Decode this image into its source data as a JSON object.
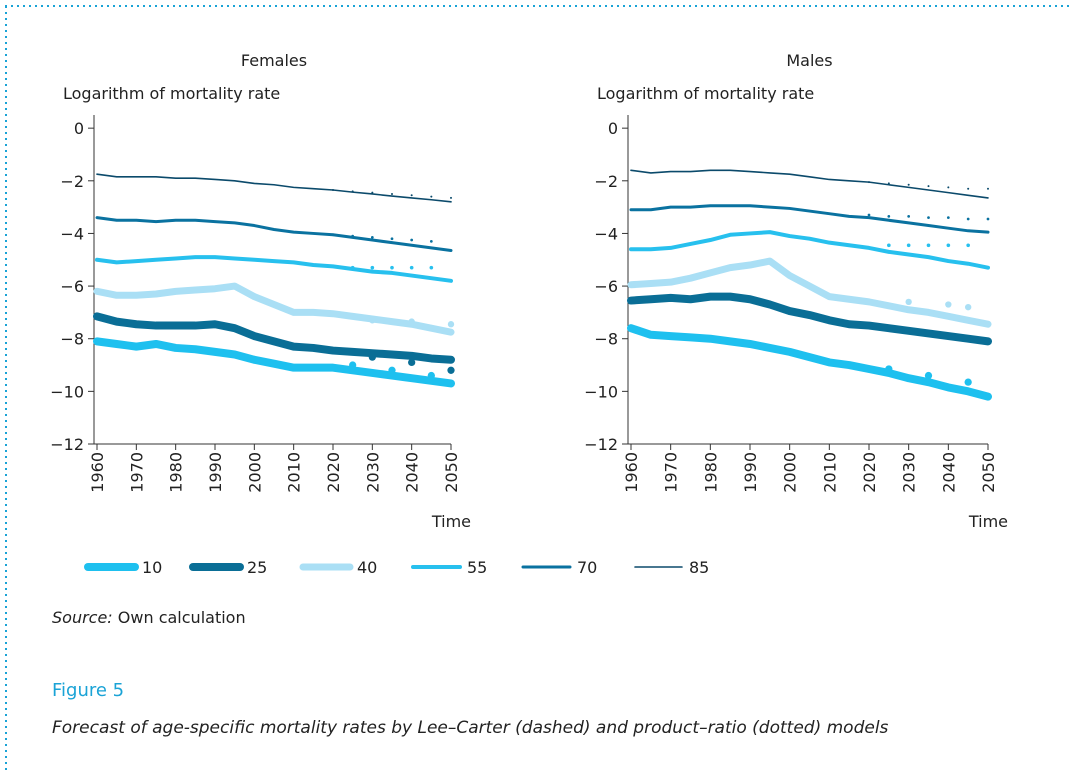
{
  "chart_data": [
    {
      "type": "line",
      "title": "Females",
      "ylabel": "Logarithm of mortality rate",
      "xlabel": "Time",
      "x": [
        1960,
        1965,
        1970,
        1975,
        1980,
        1985,
        1990,
        1995,
        2000,
        2005,
        2010,
        2015,
        2020,
        2025,
        2030,
        2035,
        2040,
        2045,
        2050
      ],
      "xlim": [
        1960,
        2050
      ],
      "xticks": [
        1960,
        1970,
        1980,
        1990,
        2000,
        2010,
        2020,
        2030,
        2040,
        2050
      ],
      "ylim": [
        -12,
        0.5
      ],
      "yticks": [
        0,
        {
          "value": -2,
          "label": "−2"
        },
        {
          "value": -4,
          "label": "−4"
        },
        {
          "value": -6,
          "label": "−6"
        },
        {
          "value": -8,
          "label": "−8"
        },
        {
          "value": -10,
          "label": "−10"
        },
        {
          "value": -12,
          "label": "−12"
        }
      ],
      "series": [
        {
          "name": "10",
          "color": "#1ec0ef",
          "line_width": 8,
          "values": [
            -8.1,
            -8.2,
            -8.3,
            -8.2,
            -8.35,
            -8.4,
            -8.5,
            -8.6,
            -8.8,
            -8.95,
            -9.1,
            -9.1,
            -9.1,
            -9.2,
            -9.3,
            -9.4,
            -9.5,
            -9.6,
            -9.7
          ],
          "dotted_values": [
            null,
            null,
            null,
            null,
            null,
            null,
            null,
            null,
            null,
            null,
            null,
            null,
            null,
            -9.0,
            null,
            -9.2,
            null,
            -9.4,
            null
          ]
        },
        {
          "name": "25",
          "color": "#0a6e96",
          "line_width": 8,
          "values": [
            -7.15,
            -7.35,
            -7.45,
            -7.5,
            -7.5,
            -7.5,
            -7.45,
            -7.6,
            -7.9,
            -8.1,
            -8.3,
            -8.35,
            -8.45,
            -8.5,
            -8.55,
            -8.6,
            -8.65,
            -8.75,
            -8.8
          ],
          "dotted_values": [
            null,
            null,
            null,
            null,
            null,
            null,
            null,
            null,
            null,
            null,
            null,
            null,
            null,
            null,
            -8.7,
            null,
            -8.9,
            null,
            -9.2
          ]
        },
        {
          "name": "40",
          "color": "#aadff5",
          "line_width": 7,
          "values": [
            -6.2,
            -6.35,
            -6.35,
            -6.3,
            -6.2,
            -6.15,
            -6.1,
            -6.0,
            -6.4,
            -6.7,
            -7.0,
            -7.0,
            -7.05,
            -7.15,
            -7.25,
            -7.35,
            -7.45,
            -7.6,
            -7.75
          ],
          "dotted_values": [
            null,
            null,
            null,
            null,
            null,
            null,
            null,
            null,
            null,
            null,
            null,
            null,
            null,
            null,
            -7.3,
            null,
            -7.35,
            null,
            -7.45
          ]
        },
        {
          "name": "55",
          "color": "#27c0ee",
          "line_width": 4,
          "values": [
            -5.0,
            -5.1,
            -5.05,
            -5.0,
            -4.95,
            -4.9,
            -4.9,
            -4.95,
            -5.0,
            -5.05,
            -5.1,
            -5.2,
            -5.25,
            -5.35,
            -5.45,
            -5.5,
            -5.6,
            -5.7,
            -5.8
          ],
          "dotted_values": [
            null,
            null,
            null,
            null,
            null,
            null,
            null,
            null,
            null,
            null,
            null,
            null,
            null,
            -5.3,
            -5.3,
            -5.3,
            -5.3,
            -5.3,
            null
          ]
        },
        {
          "name": "70",
          "color": "#0a72a0",
          "line_width": 3,
          "values": [
            -3.4,
            -3.5,
            -3.5,
            -3.55,
            -3.5,
            -3.5,
            -3.55,
            -3.6,
            -3.7,
            -3.85,
            -3.95,
            -4.0,
            -4.05,
            -4.15,
            -4.25,
            -4.35,
            -4.45,
            -4.55,
            -4.65
          ],
          "dotted_values": [
            null,
            null,
            null,
            null,
            null,
            null,
            null,
            null,
            null,
            null,
            null,
            null,
            -4.05,
            -4.1,
            -4.15,
            -4.2,
            -4.25,
            -4.3,
            null
          ]
        },
        {
          "name": "85",
          "color": "#0b4a6b",
          "line_width": 1.6,
          "values": [
            -1.75,
            -1.85,
            -1.85,
            -1.85,
            -1.9,
            -1.9,
            -1.95,
            -2.0,
            -2.1,
            -2.15,
            -2.25,
            -2.3,
            -2.35,
            -2.43,
            -2.5,
            -2.58,
            -2.65,
            -2.72,
            -2.8
          ],
          "dotted_values": [
            null,
            null,
            null,
            null,
            null,
            null,
            null,
            null,
            null,
            null,
            null,
            null,
            -2.35,
            -2.4,
            -2.45,
            -2.5,
            -2.55,
            -2.6,
            -2.65
          ]
        }
      ]
    },
    {
      "type": "line",
      "title": "Males",
      "ylabel": "Logarithm of mortality rate",
      "xlabel": "Time",
      "x": [
        1960,
        1965,
        1970,
        1975,
        1980,
        1985,
        1990,
        1995,
        2000,
        2005,
        2010,
        2015,
        2020,
        2025,
        2030,
        2035,
        2040,
        2045,
        2050
      ],
      "xlim": [
        1960,
        2050
      ],
      "xticks": [
        1960,
        1970,
        1980,
        1990,
        2000,
        2010,
        2020,
        2030,
        2040,
        2050
      ],
      "ylim": [
        -12,
        0.5
      ],
      "yticks": [
        0,
        {
          "value": -2,
          "label": "−2"
        },
        {
          "value": -4,
          "label": "−4"
        },
        {
          "value": -6,
          "label": "−6"
        },
        {
          "value": -8,
          "label": "−8"
        },
        {
          "value": -10,
          "label": "−10"
        },
        {
          "value": -12,
          "label": "−12"
        }
      ],
      "series": [
        {
          "name": "10",
          "color": "#1ec0ef",
          "line_width": 8,
          "values": [
            -7.6,
            -7.85,
            -7.9,
            -7.95,
            -8.0,
            -8.1,
            -8.2,
            -8.35,
            -8.5,
            -8.7,
            -8.9,
            -9.0,
            -9.15,
            -9.3,
            -9.5,
            -9.65,
            -9.85,
            -10.0,
            -10.2
          ],
          "dotted_values": [
            null,
            null,
            null,
            null,
            null,
            null,
            null,
            null,
            null,
            null,
            null,
            null,
            null,
            -9.15,
            null,
            -9.4,
            null,
            -9.65,
            null
          ]
        },
        {
          "name": "25",
          "color": "#0a6e96",
          "line_width": 8,
          "values": [
            -6.55,
            -6.5,
            -6.45,
            -6.5,
            -6.4,
            -6.4,
            -6.5,
            -6.7,
            -6.95,
            -7.1,
            -7.3,
            -7.45,
            -7.5,
            -7.6,
            -7.7,
            -7.8,
            -7.9,
            -8.0,
            -8.1
          ],
          "dotted_values": [
            null,
            null,
            null,
            null,
            null,
            null,
            null,
            null,
            null,
            null,
            null,
            null,
            null,
            null,
            null,
            null,
            null,
            null,
            null
          ]
        },
        {
          "name": "40",
          "color": "#aadff5",
          "line_width": 7,
          "values": [
            -5.95,
            -5.9,
            -5.85,
            -5.7,
            -5.5,
            -5.3,
            -5.2,
            -5.05,
            -5.6,
            -6.0,
            -6.4,
            -6.5,
            -6.6,
            -6.75,
            -6.9,
            -7.0,
            -7.15,
            -7.3,
            -7.45
          ],
          "dotted_values": [
            null,
            null,
            null,
            null,
            null,
            null,
            null,
            null,
            null,
            null,
            null,
            null,
            null,
            null,
            -6.6,
            null,
            -6.7,
            -6.8,
            null
          ]
        },
        {
          "name": "55",
          "color": "#27c0ee",
          "line_width": 4,
          "values": [
            -4.6,
            -4.6,
            -4.55,
            -4.4,
            -4.25,
            -4.05,
            -4.0,
            -3.95,
            -4.1,
            -4.2,
            -4.35,
            -4.45,
            -4.55,
            -4.7,
            -4.8,
            -4.9,
            -5.05,
            -5.15,
            -5.3
          ],
          "dotted_values": [
            null,
            null,
            null,
            null,
            null,
            null,
            null,
            null,
            null,
            null,
            null,
            null,
            null,
            -4.45,
            -4.45,
            -4.45,
            -4.45,
            -4.45,
            null
          ]
        },
        {
          "name": "70",
          "color": "#0a72a0",
          "line_width": 3,
          "values": [
            -3.1,
            -3.1,
            -3.0,
            -3.0,
            -2.95,
            -2.95,
            -2.95,
            -3.0,
            -3.05,
            -3.15,
            -3.25,
            -3.35,
            -3.4,
            -3.5,
            -3.6,
            -3.7,
            -3.8,
            -3.9,
            -3.95
          ],
          "dotted_values": [
            null,
            null,
            null,
            null,
            null,
            null,
            null,
            null,
            null,
            null,
            null,
            null,
            -3.3,
            -3.35,
            -3.35,
            -3.4,
            -3.4,
            -3.45,
            -3.45
          ]
        },
        {
          "name": "85",
          "color": "#0b4a6b",
          "line_width": 1.6,
          "values": [
            -1.6,
            -1.7,
            -1.65,
            -1.65,
            -1.6,
            -1.6,
            -1.65,
            -1.7,
            -1.75,
            -1.85,
            -1.95,
            -2.0,
            -2.05,
            -2.15,
            -2.25,
            -2.35,
            -2.45,
            -2.55,
            -2.65
          ],
          "dotted_values": [
            null,
            null,
            null,
            null,
            null,
            null,
            null,
            null,
            null,
            null,
            null,
            null,
            -2.05,
            -2.1,
            -2.15,
            -2.2,
            -2.25,
            -2.3,
            -2.3
          ]
        }
      ]
    }
  ],
  "source": {
    "label": "Source:",
    "text": "Own calculation"
  },
  "figure": {
    "number": "Figure 5",
    "caption": "Forecast of age-specific mortality rates by Lee–Carter (dashed) and product–ratio (dotted) models"
  }
}
